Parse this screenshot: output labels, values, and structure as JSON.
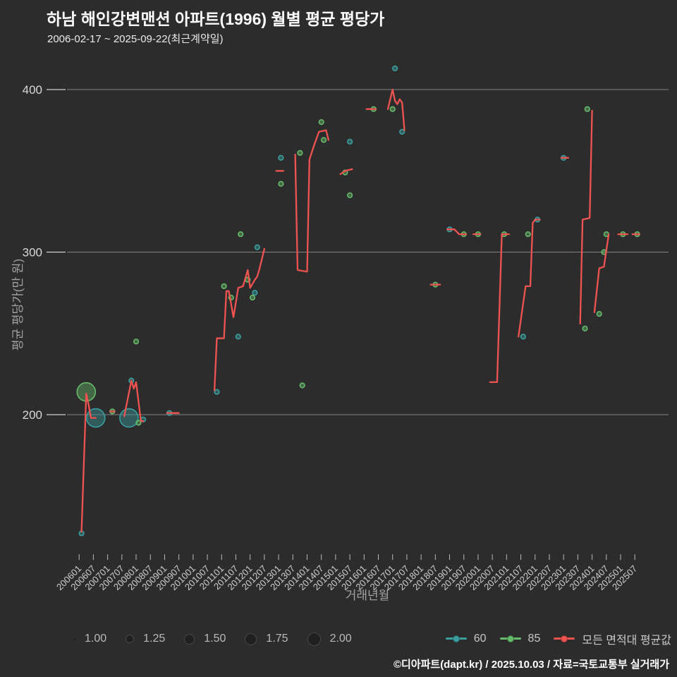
{
  "header": {
    "title": "하남 해인강변맨션 아파트(1996) 월별 평균 평당가",
    "subtitle": "2006-02-17 ~ 2025-09-22(최근계약일)"
  },
  "footer": {
    "attribution": "©디아파트(dapt.kr) / 2025.10.03 / 자료=국토교통부 실거래가"
  },
  "colors": {
    "background": "#2c2c2d",
    "red": "#ef5350",
    "teal": "#3b9e9e",
    "green": "#66bb6a",
    "grid": "rgba(255,255,255,0.42)",
    "tick_text": "#d9d9d9",
    "axis_title_text": "#a3a3a3",
    "size_legend_dot": "#202020"
  },
  "legend": {
    "size_labels": [
      "1.00",
      "1.25",
      "1.50",
      "1.75",
      "2.00"
    ]
  },
  "chart_data": {
    "type": "line+scatter",
    "title": "하남 해인강변맨션 아파트(1996) 월별 평균 평당가",
    "subtitle": "2006-02-17 ~ 2025-09-22(최근계약일)",
    "x_axis": {
      "label": "거래년월",
      "ticks": [
        "200601",
        "200607",
        "200701",
        "200707",
        "200801",
        "200807",
        "200901",
        "200907",
        "201001",
        "201007",
        "201101",
        "201107",
        "201201",
        "201207",
        "201301",
        "201307",
        "201401",
        "201407",
        "201501",
        "201507",
        "201601",
        "201607",
        "201701",
        "201707",
        "201801",
        "201807",
        "201901",
        "201907",
        "202001",
        "202007",
        "202101",
        "202107",
        "202201",
        "202207",
        "202301",
        "202307",
        "202401",
        "202407",
        "202501",
        "202507"
      ]
    },
    "y_axis": {
      "label": "평균 평당가(만 원)",
      "ticks": [
        200,
        300,
        400
      ],
      "range": [
        120,
        420
      ]
    },
    "avg_line": {
      "name": "모든 면적대 평균값",
      "color_key": "red",
      "segments": [
        [
          [
            200602,
            128
          ],
          [
            200603,
            170
          ],
          [
            200604,
            213
          ],
          [
            200605,
            206
          ],
          [
            200606,
            198
          ],
          [
            200608,
            198
          ]
        ],
        [
          [
            200702,
            202
          ],
          [
            200704,
            202
          ]
        ],
        [
          [
            200708,
            199
          ],
          [
            200711,
            221
          ],
          [
            200712,
            216
          ],
          [
            200801,
            220
          ],
          [
            200803,
            196
          ],
          [
            200804,
            196
          ]
        ],
        [
          [
            200902,
            201
          ],
          [
            200907,
            201
          ]
        ],
        [
          [
            201010,
            215
          ],
          [
            201011,
            247
          ],
          [
            201102,
            247
          ],
          [
            201103,
            276
          ],
          [
            201104,
            276
          ],
          [
            201106,
            260
          ],
          [
            201108,
            278
          ],
          [
            201110,
            279
          ],
          [
            201112,
            289
          ],
          [
            201201,
            278
          ],
          [
            201203,
            283
          ],
          [
            201204,
            285
          ],
          [
            201205,
            290
          ],
          [
            201207,
            302
          ]
        ],
        [
          [
            201212,
            350
          ],
          [
            201303,
            350
          ]
        ],
        [
          [
            201308,
            360
          ],
          [
            201309,
            289
          ],
          [
            201401,
            288
          ],
          [
            201402,
            357
          ],
          [
            201404,
            366
          ],
          [
            201406,
            374
          ],
          [
            201409,
            375
          ],
          [
            201410,
            369
          ]
        ],
        [
          [
            201503,
            348
          ],
          [
            201505,
            350
          ],
          [
            201508,
            351
          ]
        ],
        [
          [
            201602,
            388
          ],
          [
            201606,
            388
          ]
        ],
        [
          [
            201611,
            388
          ],
          [
            201701,
            400
          ],
          [
            201702,
            393
          ],
          [
            201703,
            391
          ],
          [
            201704,
            394
          ],
          [
            201705,
            392
          ],
          [
            201706,
            375
          ]
        ],
        [
          [
            201805,
            280
          ],
          [
            201809,
            280
          ]
        ],
        [
          [
            201812,
            314
          ],
          [
            201903,
            314
          ],
          [
            201905,
            311
          ],
          [
            201908,
            311
          ]
        ],
        [
          [
            201911,
            311
          ],
          [
            202002,
            311
          ]
        ],
        [
          [
            202006,
            220
          ],
          [
            202009,
            220
          ],
          [
            202011,
            311
          ],
          [
            202102,
            311
          ]
        ],
        [
          [
            202106,
            248
          ],
          [
            202109,
            279
          ],
          [
            202111,
            279
          ],
          [
            202112,
            318
          ],
          [
            202201,
            320
          ],
          [
            202203,
            320
          ]
        ],
        [
          [
            202212,
            358
          ],
          [
            202303,
            358
          ]
        ],
        [
          [
            202308,
            256
          ],
          [
            202309,
            320
          ],
          [
            202312,
            321
          ],
          [
            202401,
            387
          ]
        ],
        [
          [
            202402,
            263
          ],
          [
            202404,
            290
          ],
          [
            202406,
            291
          ],
          [
            202408,
            311
          ]
        ],
        [
          [
            202412,
            311
          ],
          [
            202504,
            311
          ]
        ],
        [
          [
            202506,
            311
          ],
          [
            202509,
            311
          ]
        ]
      ]
    },
    "scatter": [
      {
        "name": "60",
        "color_key": "teal",
        "points": [
          [
            200602,
            127,
            1
          ],
          [
            200608,
            198,
            2
          ],
          [
            200710,
            198,
            2
          ],
          [
            200711,
            221,
            1
          ],
          [
            200804,
            197,
            1
          ],
          [
            200903,
            201,
            1
          ],
          [
            201011,
            214,
            1
          ],
          [
            201108,
            248,
            1
          ],
          [
            201203,
            275,
            1
          ],
          [
            201204,
            303,
            1
          ],
          [
            201302,
            358,
            1
          ],
          [
            201507,
            368,
            1
          ],
          [
            201702,
            413,
            1
          ],
          [
            201705,
            374,
            1
          ],
          [
            201901,
            314,
            1
          ],
          [
            202108,
            248,
            1
          ],
          [
            202202,
            320,
            1
          ],
          [
            202301,
            358,
            1
          ]
        ]
      },
      {
        "name": "85",
        "color_key": "green",
        "points": [
          [
            200604,
            214,
            2
          ],
          [
            200703,
            202,
            1
          ],
          [
            200801,
            245,
            1
          ],
          [
            200802,
            195,
            1
          ],
          [
            201102,
            279,
            1
          ],
          [
            201105,
            272,
            1
          ],
          [
            201109,
            311,
            1
          ],
          [
            201112,
            283,
            1
          ],
          [
            201202,
            272,
            1
          ],
          [
            201302,
            342,
            1
          ],
          [
            201310,
            361,
            1
          ],
          [
            201311,
            218,
            1
          ],
          [
            201407,
            380,
            1
          ],
          [
            201408,
            369,
            1
          ],
          [
            201505,
            349,
            1
          ],
          [
            201507,
            335,
            1
          ],
          [
            201605,
            388,
            1
          ],
          [
            201701,
            388,
            1
          ],
          [
            201807,
            280,
            1
          ],
          [
            201907,
            311,
            1
          ],
          [
            202001,
            311,
            1
          ],
          [
            202012,
            311,
            1
          ],
          [
            202110,
            311,
            1
          ],
          [
            202310,
            253,
            1
          ],
          [
            202311,
            388,
            1
          ],
          [
            202404,
            262,
            1
          ],
          [
            202406,
            300,
            1
          ],
          [
            202407,
            311,
            1
          ],
          [
            202502,
            311,
            1
          ],
          [
            202508,
            311,
            1
          ]
        ]
      }
    ]
  }
}
